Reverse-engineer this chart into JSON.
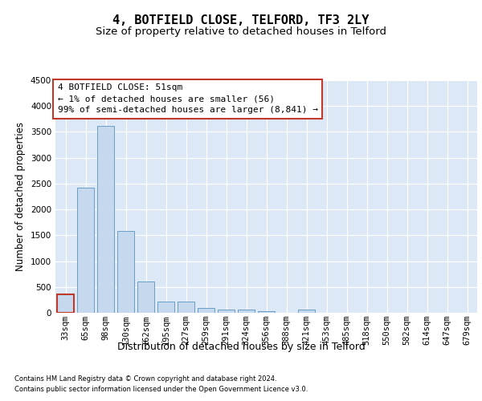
{
  "title": "4, BOTFIELD CLOSE, TELFORD, TF3 2LY",
  "subtitle": "Size of property relative to detached houses in Telford",
  "xlabel": "Distribution of detached houses by size in Telford",
  "ylabel": "Number of detached properties",
  "footnote1": "Contains HM Land Registry data © Crown copyright and database right 2024.",
  "footnote2": "Contains public sector information licensed under the Open Government Licence v3.0.",
  "categories": [
    "33sqm",
    "65sqm",
    "98sqm",
    "130sqm",
    "162sqm",
    "195sqm",
    "227sqm",
    "259sqm",
    "291sqm",
    "324sqm",
    "356sqm",
    "388sqm",
    "421sqm",
    "453sqm",
    "485sqm",
    "518sqm",
    "550sqm",
    "582sqm",
    "614sqm",
    "647sqm",
    "679sqm"
  ],
  "values": [
    350,
    2420,
    3620,
    1580,
    600,
    210,
    210,
    100,
    65,
    55,
    30,
    0,
    60,
    0,
    0,
    0,
    0,
    0,
    0,
    0,
    0
  ],
  "bar_color": "#c5d8ed",
  "bar_edge_color": "#6a9ec5",
  "highlight_bar_index": 0,
  "highlight_bar_edge_color": "#c0392b",
  "annotation_text": "4 BOTFIELD CLOSE: 51sqm\n← 1% of detached houses are smaller (56)\n99% of semi-detached houses are larger (8,841) →",
  "annotation_box_color": "white",
  "annotation_box_edge_color": "#c0392b",
  "ylim": [
    0,
    4500
  ],
  "yticks": [
    0,
    500,
    1000,
    1500,
    2000,
    2500,
    3000,
    3500,
    4000,
    4500
  ],
  "bg_color": "#dce8f5",
  "title_fontsize": 11,
  "subtitle_fontsize": 9.5,
  "xlabel_fontsize": 9,
  "ylabel_fontsize": 8.5,
  "tick_fontsize": 7.5,
  "annotation_fontsize": 8
}
